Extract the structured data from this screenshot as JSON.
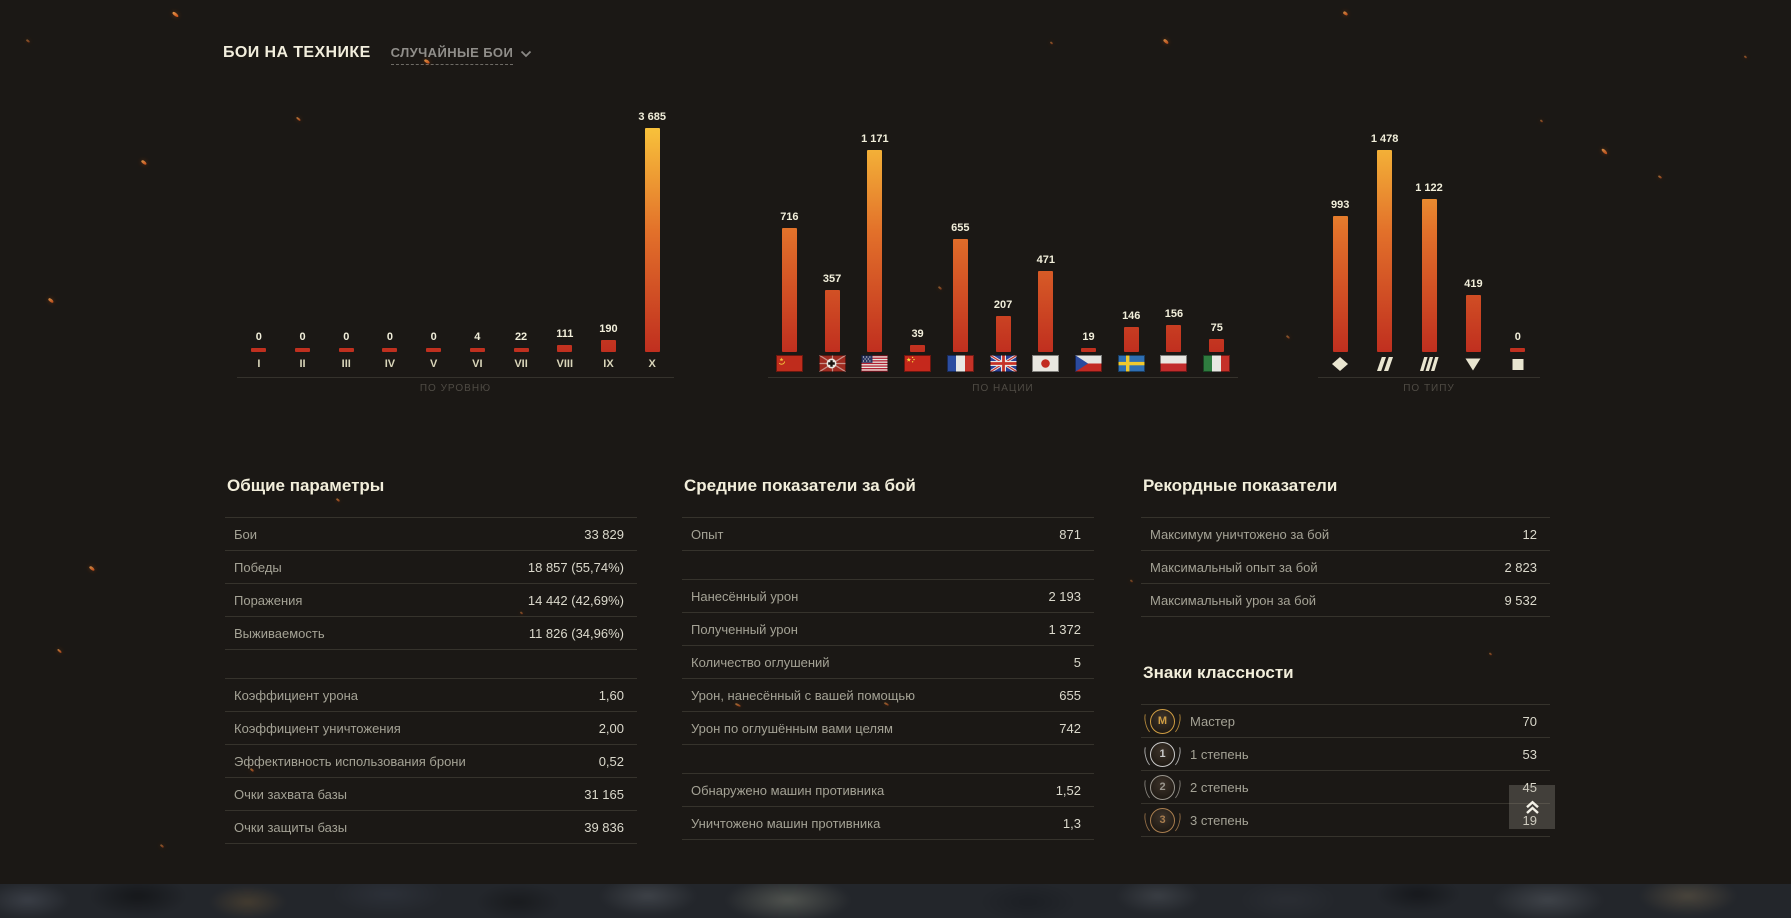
{
  "header": {
    "title": "БОИ НА ТЕХНИКЕ",
    "filter": {
      "label": "СЛУЧАЙНЫЕ БОИ",
      "icon": "chevron-down-icon"
    }
  },
  "chart_data": [
    {
      "id": "by-tier",
      "type": "bar",
      "caption": "ПО УРОВНЮ",
      "categories": [
        "I",
        "II",
        "III",
        "IV",
        "V",
        "VI",
        "VII",
        "VIII",
        "IX",
        "X"
      ],
      "values": [
        0,
        0,
        0,
        0,
        0,
        4,
        22,
        111,
        190,
        3685
      ],
      "value_labels": [
        "0",
        "0",
        "0",
        "0",
        "0",
        "4",
        "22",
        "111",
        "190",
        "3 685"
      ],
      "ymax": 3685
    },
    {
      "id": "by-nation",
      "type": "bar",
      "caption": "ПО НАЦИИ",
      "categories": [
        "ussr",
        "germany",
        "usa",
        "china",
        "france",
        "uk",
        "japan",
        "czechoslovakia",
        "sweden",
        "poland",
        "italy"
      ],
      "icons": [
        "flag-ussr-icon",
        "flag-germany-icon",
        "flag-usa-icon",
        "flag-china-icon",
        "flag-france-icon",
        "flag-uk-icon",
        "flag-japan-icon",
        "flag-czechoslovakia-icon",
        "flag-sweden-icon",
        "flag-poland-icon",
        "flag-italy-icon"
      ],
      "values": [
        716,
        357,
        1171,
        39,
        655,
        207,
        471,
        19,
        146,
        156,
        75
      ],
      "value_labels": [
        "716",
        "357",
        "1 171",
        "39",
        "655",
        "207",
        "471",
        "19",
        "146",
        "156",
        "75"
      ],
      "ymax": 1171
    },
    {
      "id": "by-type",
      "type": "bar",
      "caption": "ПО ТИПУ",
      "categories": [
        "lightTank",
        "mediumTank",
        "heavyTank",
        "tankDestroyer",
        "spg"
      ],
      "icons": [
        "vehicle-type-light-icon",
        "vehicle-type-medium-icon",
        "vehicle-type-heavy-icon",
        "vehicle-type-td-icon",
        "vehicle-type-spg-icon"
      ],
      "values": [
        993,
        1478,
        1122,
        419,
        0
      ],
      "value_labels": [
        "993",
        "1 478",
        "1 122",
        "419",
        "0"
      ],
      "ymax": 1478
    }
  ],
  "panels": {
    "general": {
      "title": "Общие параметры",
      "groups": [
        {
          "rows": [
            [
              "Бои",
              "33 829"
            ],
            [
              "Победы",
              "18 857 (55,74%)"
            ],
            [
              "Поражения",
              "14 442 (42,69%)"
            ],
            [
              "Выживаемость",
              "11 826 (34,96%)"
            ]
          ]
        },
        {
          "rows": [
            [
              "Коэффициент урона",
              "1,60"
            ],
            [
              "Коэффициент уничтожения",
              "2,00"
            ],
            [
              "Эффективность использования брони",
              "0,52"
            ],
            [
              "Очки захвата базы",
              "31 165"
            ],
            [
              "Очки защиты базы",
              "39 836"
            ]
          ]
        }
      ]
    },
    "average": {
      "title": "Средние показатели за бой",
      "groups": [
        {
          "rows": [
            [
              "Опыт",
              "871"
            ]
          ]
        },
        {
          "rows": [
            [
              "Нанесённый урон",
              "2 193"
            ],
            [
              "Полученный урон",
              "1 372"
            ],
            [
              "Количество оглушений",
              "5"
            ],
            [
              "Урон, нанесённый с вашей помощью",
              "655"
            ],
            [
              "Урон по оглушённым вами целям",
              "742"
            ]
          ]
        },
        {
          "rows": [
            [
              "Обнаружено машин противника",
              "1,52"
            ],
            [
              "Уничтожено машин противника",
              "1,3"
            ]
          ]
        }
      ]
    },
    "records": {
      "title": "Рекордные показатели",
      "groups": [
        {
          "rows": [
            [
              "Максимум уничтожено за бой",
              "12"
            ],
            [
              "Максимальный опыт за бой",
              "2 823"
            ],
            [
              "Максимальный урон за бой",
              "9 532"
            ]
          ]
        }
      ]
    },
    "badges": {
      "title": "Знаки классности",
      "rows": [
        {
          "icon": "badge-master-icon",
          "glyph": "M",
          "label": "Мастер",
          "value": "70",
          "metal": "#cf9d43"
        },
        {
          "icon": "badge-1st-class-icon",
          "glyph": "1",
          "label": "1 степень",
          "value": "53",
          "metal": "#c9c9c9"
        },
        {
          "icon": "badge-2nd-class-icon",
          "glyph": "2",
          "label": "2 степень",
          "value": "45",
          "metal": "#9a968e"
        },
        {
          "icon": "badge-3rd-class-icon",
          "glyph": "3",
          "label": "3 степень",
          "value": "19",
          "metal": "#a97e4f"
        }
      ]
    }
  },
  "scroll_top_button": {
    "icon": "double-chevron-up-icon"
  },
  "colors": {
    "background": "#1b1815",
    "bar_gradient_top": "#f9c63c",
    "bar_gradient_mid": "#e2702a",
    "bar_gradient_bottom": "#c02f1f",
    "heading": "#f2eedb",
    "label": "#a4a295",
    "value": "#dbd9cc",
    "divider": "#36332c",
    "caption": "#4f4b44"
  }
}
